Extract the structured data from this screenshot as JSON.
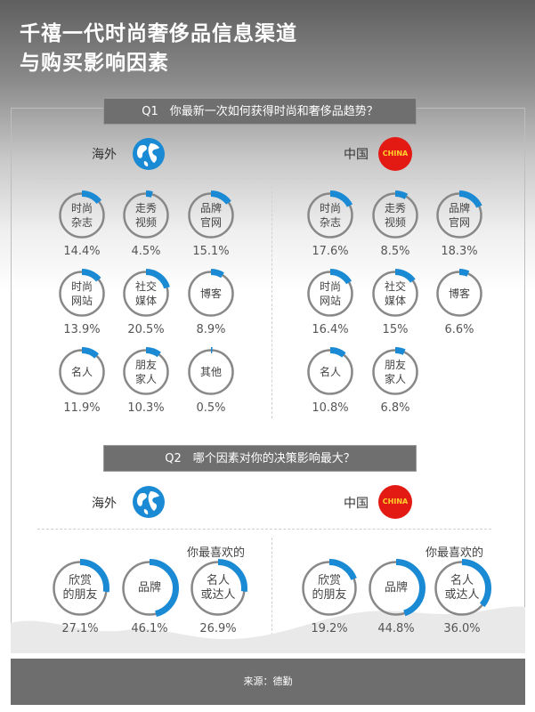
{
  "title_line1": "千禧一代时尚奢侈品信息渠道",
  "title_line2": "与购买影响因素",
  "q1": "Q1　你最新一次如何获得时尚和奢侈品趋势？",
  "q2": "Q2　哪个因素对你的决策影响最大？",
  "overseas_label": "海外",
  "china_label": "中国",
  "china_badge": "CHINA",
  "favorite_label": "你最喜欢的",
  "footer": "来源：德勤",
  "accent_color": "#1a8ad4",
  "ring_color": "#888888",
  "q1_overseas": [
    {
      "label": "时尚\n杂志",
      "pct": "14.4%",
      "value": 0.144
    },
    {
      "label": "走秀\n视频",
      "pct": "4.5%",
      "value": 0.045
    },
    {
      "label": "品牌\n官网",
      "pct": "15.1%",
      "value": 0.151
    },
    {
      "label": "时尚\n网站",
      "pct": "13.9%",
      "value": 0.139
    },
    {
      "label": "社交\n媒体",
      "pct": "20.5%",
      "value": 0.205
    },
    {
      "label": "博客",
      "pct": "8.9%",
      "value": 0.089
    },
    {
      "label": "名人",
      "pct": "11.9%",
      "value": 0.119
    },
    {
      "label": "朋友\n家人",
      "pct": "10.3%",
      "value": 0.103
    },
    {
      "label": "其他",
      "pct": "0.5%",
      "value": 0.005
    }
  ],
  "q1_china": [
    {
      "label": "时尚\n杂志",
      "pct": "17.6%",
      "value": 0.176
    },
    {
      "label": "走秀\n视频",
      "pct": "8.5%",
      "value": 0.085
    },
    {
      "label": "品牌\n官网",
      "pct": "18.3%",
      "value": 0.183
    },
    {
      "label": "时尚\n网站",
      "pct": "16.4%",
      "value": 0.164
    },
    {
      "label": "社交\n媒体",
      "pct": "15%",
      "value": 0.15
    },
    {
      "label": "博客",
      "pct": "6.6%",
      "value": 0.066
    },
    {
      "label": "名人",
      "pct": "10.8%",
      "value": 0.108
    },
    {
      "label": "朋友\n家人",
      "pct": "6.8%",
      "value": 0.068
    }
  ],
  "q2_overseas": [
    {
      "label": "欣赏\n的朋友",
      "pct": "27.1%",
      "value": 0.271
    },
    {
      "label": "品牌",
      "pct": "46.1%",
      "value": 0.461
    },
    {
      "label": "名人\n或达人",
      "pct": "26.9%",
      "value": 0.269
    }
  ],
  "q2_china": [
    {
      "label": "欣赏\n的朋友",
      "pct": "19.2%",
      "value": 0.192
    },
    {
      "label": "品牌",
      "pct": "44.8%",
      "value": 0.448
    },
    {
      "label": "名人\n或达人",
      "pct": "36.0%",
      "value": 0.36
    }
  ]
}
